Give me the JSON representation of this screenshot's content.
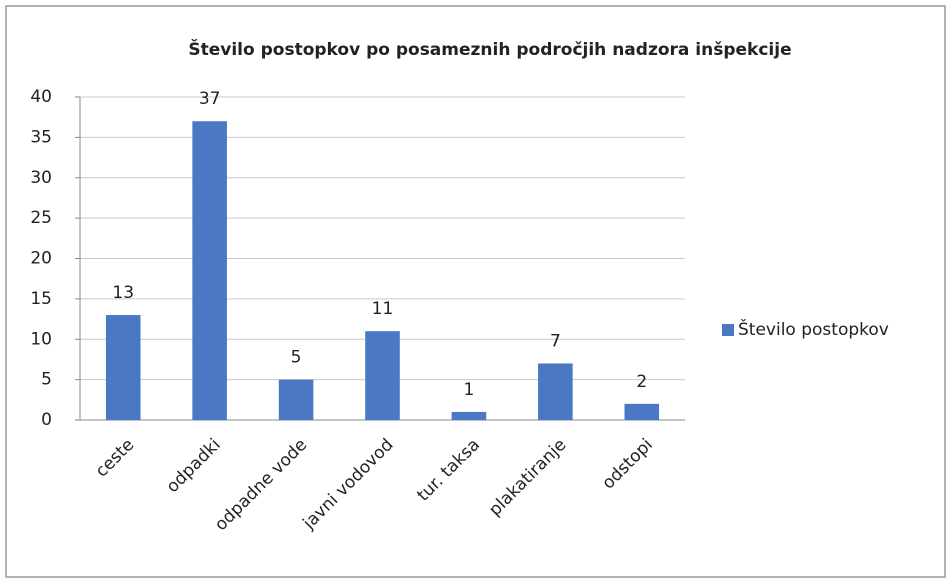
{
  "chart_data": {
    "type": "bar",
    "title": "Število postopkov po posameznih področjih nadzora inšpekcije",
    "categories": [
      "ceste",
      "odpadki",
      "odpadne vode",
      "javni vodovod",
      "tur. taksa",
      "plakatiranje",
      "odstopi"
    ],
    "series": [
      {
        "name": "Število postopkov",
        "color": "#4a78c4",
        "values": [
          13,
          37,
          5,
          11,
          1,
          7,
          2
        ]
      }
    ],
    "ylim": [
      0,
      40
    ],
    "yticks": [
      0,
      5,
      10,
      15,
      20,
      25,
      30,
      35,
      40
    ],
    "grid": true,
    "legend": "right",
    "data_labels": true
  }
}
